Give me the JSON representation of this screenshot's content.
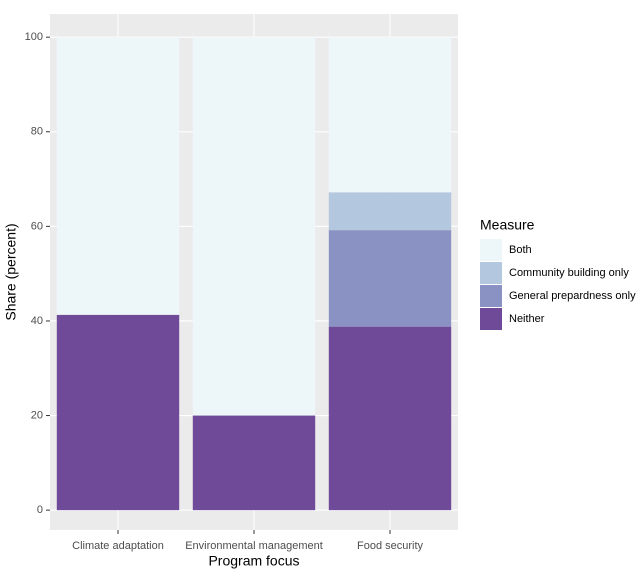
{
  "chart_data": {
    "type": "stacked-bar",
    "x_label": "Program focus",
    "y_label": "Share (percent)",
    "categories": [
      "Climate adaptation",
      "Environmental management",
      "Food security"
    ],
    "series": [
      {
        "name": "Both",
        "color": "#edf6f8",
        "values": [
          58.7,
          80,
          32.8
        ]
      },
      {
        "name": "Community building only",
        "color": "#b3c8df",
        "values": [
          0,
          0,
          8.0
        ]
      },
      {
        "name": "General prepardness only",
        "color": "#8a92c4",
        "values": [
          0,
          0,
          20.4
        ]
      },
      {
        "name": "Neither",
        "color": "#6e4a99",
        "values": [
          41.3,
          20,
          38.8
        ]
      }
    ],
    "legend_title": "Measure",
    "ylim": [
      -4.2,
      104.9
    ],
    "yticks": [
      0,
      20,
      40,
      60,
      80,
      100
    ],
    "grid": true,
    "legend": "right"
  }
}
